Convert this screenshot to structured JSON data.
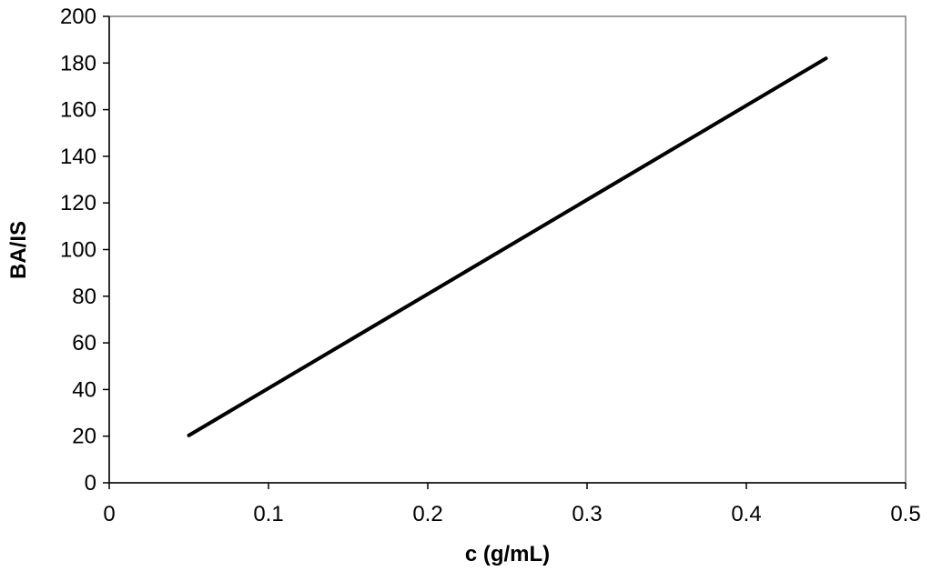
{
  "chart_data": {
    "type": "line",
    "title": "",
    "xlabel": "c (g/mL)",
    "ylabel": "BA/IS",
    "xlim": [
      0,
      0.5
    ],
    "ylim": [
      0,
      200
    ],
    "x_ticks": [
      "0",
      "0.1",
      "0.2",
      "0.3",
      "0.4",
      "0.5"
    ],
    "y_ticks": [
      "0",
      "20",
      "40",
      "60",
      "80",
      "100",
      "120",
      "140",
      "160",
      "180",
      "200"
    ],
    "grid": false,
    "legend": "none",
    "series": [
      {
        "color": "#000000",
        "x": [
          0.05,
          0.45
        ],
        "y": [
          20.3,
          182
        ]
      }
    ]
  }
}
